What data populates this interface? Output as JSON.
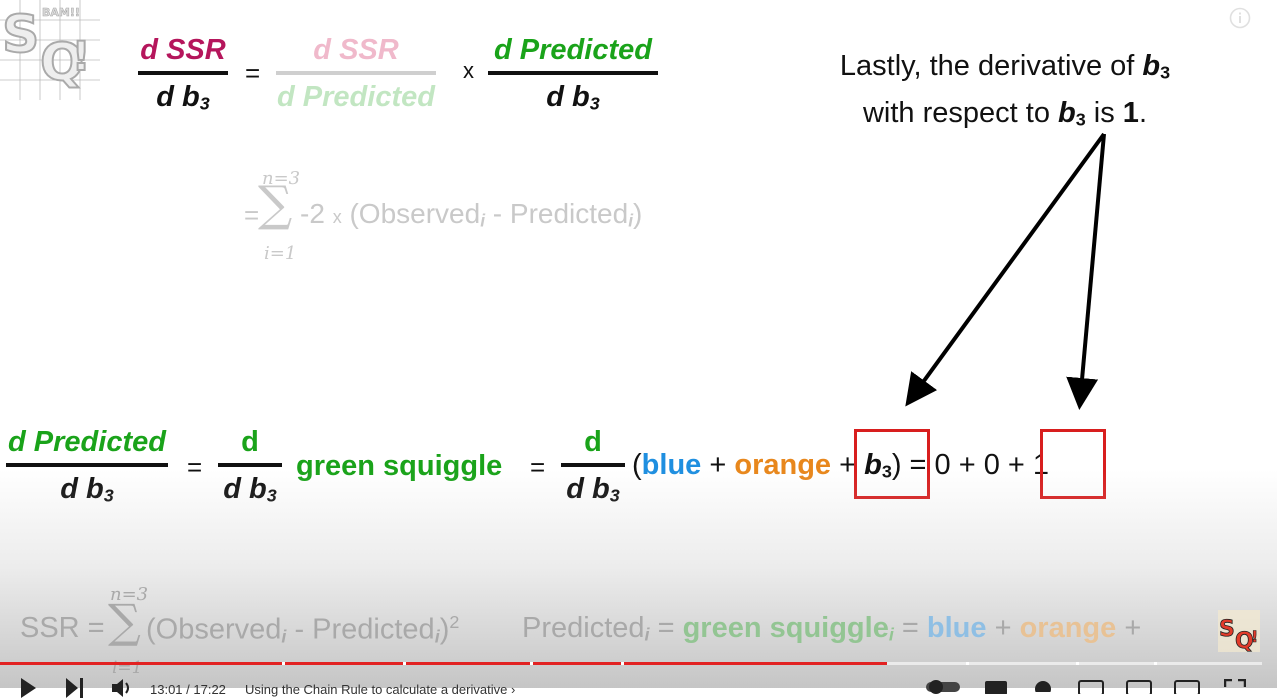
{
  "colors": {
    "magenta": "#b5165c",
    "pink_faded": "#f0b9cb",
    "green": "#1aa31a",
    "green_faded": "#c2e6c2",
    "blue": "#1f8fe0",
    "orange": "#e8871c",
    "red_box": "#d81e1e",
    "progress": "#e22222"
  },
  "top_eq": {
    "lhs_num": "d SSR",
    "lhs_den_d": "d ",
    "lhs_den_b": "b",
    "lhs_den_sub": "3",
    "eq": "=",
    "mid_num": "d SSR",
    "mid_den": "d Predicted",
    "times": "x",
    "rhs_num": "d Predicted",
    "rhs_den_d": "d ",
    "rhs_den_b": "b",
    "rhs_den_sub": "3"
  },
  "sum_eq": {
    "eq": "=",
    "upper": "n=3",
    "lower": "i=1",
    "sigma": "∑",
    "body_a": "-2 ",
    "times": "x",
    "body_b": " (Observed",
    "body_i1": "i",
    "body_c": " - Predicted",
    "body_i2": "i",
    "body_d": ")"
  },
  "note": {
    "line1_a": "Lastly, the derivative of ",
    "line1_b": "b",
    "line1_sub": "3",
    "line2_a": "with respect to ",
    "line2_b": "b",
    "line2_sub": "3",
    "line2_c": " is ",
    "line2_one": "1",
    "line2_dot": "."
  },
  "main_eq": {
    "lhs_num": "d Predicted",
    "lhs_den_d": "d ",
    "lhs_den_b": "b",
    "lhs_den_sub": "3",
    "eq1": "=",
    "f2_num": "d",
    "f2_den_d": "d ",
    "f2_den_b": "b",
    "f2_den_sub": "3",
    "green_squiggle": "green squiggle",
    "eq2": "=",
    "f3_num": "d",
    "f3_den_d": "d ",
    "f3_den_b": "b",
    "f3_den_sub": "3",
    "open_paren": "(",
    "blue": "blue",
    "plus1": " + ",
    "orange": "orange",
    "plus2": " + ",
    "b3_b": "b",
    "b3_sub": "3",
    "close_paren": ")",
    "eq3": " = 0 + 0 ",
    "plus_one": "+ 1"
  },
  "bottom_eq": {
    "ssr": "SSR =",
    "upper": "n=3",
    "lower": "i=1",
    "sigma": "∑",
    "obs": "(Observed",
    "obs_i": "i",
    "minus": " - Predicted",
    "pred_i": "i",
    "close": ")",
    "sq": "2",
    "pred_label": "Predicted",
    "pred_label_i": "i",
    "eq": " = ",
    "green_squiggle": "green squiggle",
    "green_i": "i",
    "eq2": " = ",
    "blue": "blue",
    "plus1": " + ",
    "orange": "orange",
    "plus2": " + "
  },
  "player": {
    "progress_fraction": 0.703,
    "time": "13:01 / 17:22",
    "chapter": "Using the Chain Rule to calculate a derivative",
    "chapter_arrow": "›"
  },
  "icons": {
    "info": "info-icon",
    "play": "play-icon",
    "next": "next-icon",
    "volume": "volume-icon"
  }
}
